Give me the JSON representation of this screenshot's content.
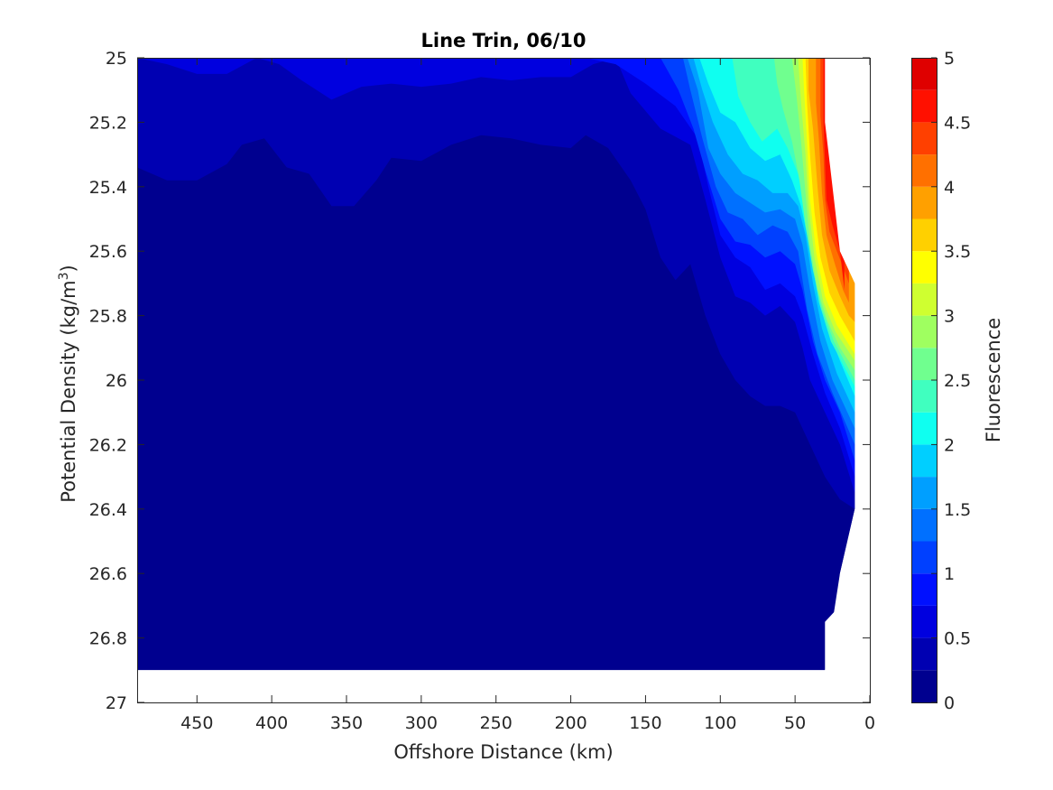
{
  "chart_data": {
    "type": "contour",
    "title": "Line Trin, 06/10",
    "xlabel": "Offshore Distance (km)",
    "ylabel_main": "Potential Density (kg/m",
    "ylabel_sup": "3",
    "ylabel_tail": ")",
    "colorbar_label": "Fluorescence",
    "xlim": [
      490,
      0
    ],
    "x_direction": "reversed",
    "ylim": [
      25,
      27
    ],
    "y_direction": "reversed",
    "clim": [
      0,
      5
    ],
    "grid": false,
    "x_ticks": [
      450,
      400,
      350,
      300,
      250,
      200,
      150,
      100,
      50,
      0
    ],
    "y_ticks": [
      25,
      25.2,
      25.4,
      25.6,
      25.8,
      26,
      26.2,
      26.4,
      26.6,
      26.8,
      27
    ],
    "y_tick_labels": [
      "25",
      "25.2",
      "25.4",
      "25.6",
      "25.8",
      "26",
      "26.2",
      "26.4",
      "26.6",
      "26.8",
      "27"
    ],
    "colorbar_ticks": [
      0,
      0.5,
      1,
      1.5,
      2,
      2.5,
      3,
      3.5,
      4,
      4.5,
      5
    ],
    "colorbar_tick_labels": [
      "0",
      "0.5",
      "1",
      "1.5",
      "2",
      "2.5",
      "3",
      "3.5",
      "4",
      "4.5",
      "5"
    ],
    "levels": [
      0,
      0.25,
      0.5,
      0.75,
      1,
      1.25,
      1.5,
      1.75,
      2,
      2.25,
      2.5,
      2.75,
      3,
      3.25,
      3.5,
      3.75,
      4,
      4.25,
      4.5,
      4.75,
      5
    ],
    "level_colors": [
      "#00008f",
      "#0000b2",
      "#0000df",
      "#0010ff",
      "#0040ff",
      "#0070ff",
      "#009fff",
      "#00cfff",
      "#0ffff0",
      "#40ffbf",
      "#70ff8f",
      "#9fff60",
      "#cfff30",
      "#ffff00",
      "#ffd000",
      "#ffa000",
      "#ff7000",
      "#ff4000",
      "#ff1000",
      "#df0000",
      "#af0000"
    ],
    "data_extent": {
      "comment_free": true,
      "x": [
        490,
        460,
        440,
        420,
        400,
        380,
        360,
        340,
        320,
        300,
        280,
        260,
        240,
        220,
        200,
        180,
        160,
        140,
        130,
        120,
        110,
        100,
        90,
        80,
        70,
        60,
        50,
        40,
        30,
        20,
        10
      ],
      "deep_boundary_y": [
        26.9,
        26.9,
        26.9,
        26.9,
        26.9,
        26.9,
        26.9,
        26.9,
        26.9,
        26.9,
        26.9,
        26.9,
        26.9,
        26.9,
        26.9,
        26.9,
        26.9,
        26.9,
        26.9,
        26.9,
        26.9,
        26.9,
        26.9,
        26.9,
        26.9,
        26.9,
        26.9,
        26.9,
        26.9,
        26.6,
        26.4
      ],
      "shallow_boundary_y": [
        25,
        25,
        25,
        25,
        25,
        25,
        25,
        25,
        25,
        25,
        25,
        25,
        25,
        25,
        25,
        25,
        25,
        25,
        25,
        25,
        25,
        25,
        25,
        25,
        25,
        25,
        25,
        25,
        25.2,
        25.6,
        25.7
      ]
    },
    "contour_bands": [
      {
        "level": 0.25,
        "boundary": [
          [
            490,
            25.34
          ],
          [
            470,
            25.38
          ],
          [
            450,
            25.38
          ],
          [
            430,
            25.33
          ],
          [
            420,
            25.27
          ],
          [
            405,
            25.25
          ],
          [
            390,
            25.34
          ],
          [
            375,
            25.36
          ],
          [
            360,
            25.46
          ],
          [
            345,
            25.46
          ],
          [
            330,
            25.38
          ],
          [
            320,
            25.31
          ],
          [
            300,
            25.32
          ],
          [
            280,
            25.27
          ],
          [
            260,
            25.24
          ],
          [
            240,
            25.25
          ],
          [
            220,
            25.27
          ],
          [
            200,
            25.28
          ],
          [
            190,
            25.24
          ],
          [
            175,
            25.28
          ],
          [
            160,
            25.38
          ],
          [
            150,
            25.47
          ],
          [
            140,
            25.62
          ],
          [
            130,
            25.69
          ],
          [
            120,
            25.64
          ],
          [
            110,
            25.8
          ],
          [
            100,
            25.92
          ],
          [
            90,
            26.0
          ],
          [
            80,
            26.05
          ],
          [
            70,
            26.08
          ],
          [
            60,
            26.08
          ],
          [
            50,
            26.1
          ],
          [
            40,
            26.2
          ],
          [
            30,
            26.3
          ],
          [
            20,
            26.37
          ],
          [
            10,
            26.4
          ]
        ]
      },
      {
        "level": 0.5,
        "boundary": [
          [
            490,
            25.0
          ],
          [
            470,
            25.02
          ],
          [
            450,
            25.05
          ],
          [
            430,
            25.05
          ],
          [
            410,
            25.0
          ],
          [
            395,
            25.02
          ],
          [
            380,
            25.07
          ],
          [
            360,
            25.13
          ],
          [
            340,
            25.09
          ],
          [
            320,
            25.08
          ],
          [
            300,
            25.09
          ],
          [
            280,
            25.08
          ],
          [
            260,
            25.06
          ],
          [
            240,
            25.07
          ],
          [
            220,
            25.06
          ],
          [
            200,
            25.06
          ],
          [
            185,
            25.02
          ],
          [
            170,
            25.0
          ],
          [
            160,
            25.11
          ],
          [
            140,
            25.22
          ],
          [
            120,
            25.27
          ],
          [
            110,
            25.44
          ],
          [
            100,
            25.62
          ],
          [
            90,
            25.74
          ],
          [
            80,
            25.76
          ],
          [
            70,
            25.8
          ],
          [
            60,
            25.77
          ],
          [
            50,
            25.82
          ],
          [
            45,
            25.9
          ],
          [
            40,
            26.0
          ],
          [
            30,
            26.1
          ],
          [
            20,
            26.2
          ],
          [
            10,
            26.35
          ]
        ]
      },
      {
        "level": 0.75,
        "boundary": [
          [
            190,
            25.0
          ],
          [
            170,
            25.02
          ],
          [
            150,
            25.08
          ],
          [
            130,
            25.15
          ],
          [
            115,
            25.25
          ],
          [
            108,
            25.4
          ],
          [
            100,
            25.55
          ],
          [
            90,
            25.62
          ],
          [
            80,
            25.65
          ],
          [
            70,
            25.72
          ],
          [
            60,
            25.7
          ],
          [
            50,
            25.74
          ],
          [
            45,
            25.8
          ],
          [
            38,
            25.92
          ],
          [
            30,
            26.04
          ],
          [
            20,
            26.15
          ],
          [
            10,
            26.3
          ]
        ]
      },
      {
        "level": 1,
        "boundary": [
          [
            160,
            25.0
          ],
          [
            140,
            25.0
          ],
          [
            128,
            25.1
          ],
          [
            118,
            25.22
          ],
          [
            110,
            25.35
          ],
          [
            100,
            25.5
          ],
          [
            90,
            25.57
          ],
          [
            80,
            25.58
          ],
          [
            70,
            25.62
          ],
          [
            60,
            25.6
          ],
          [
            50,
            25.64
          ],
          [
            45,
            25.72
          ],
          [
            38,
            25.88
          ],
          [
            30,
            26.0
          ],
          [
            20,
            26.1
          ],
          [
            10,
            26.25
          ]
        ]
      },
      {
        "level": 1.25,
        "boundary": [
          [
            125,
            25.0
          ],
          [
            120,
            25.1
          ],
          [
            112,
            25.25
          ],
          [
            103,
            25.4
          ],
          [
            95,
            25.48
          ],
          [
            85,
            25.5
          ],
          [
            75,
            25.55
          ],
          [
            65,
            25.52
          ],
          [
            55,
            25.54
          ],
          [
            48,
            25.6
          ],
          [
            42,
            25.78
          ],
          [
            35,
            25.92
          ],
          [
            25,
            26.04
          ],
          [
            10,
            26.2
          ]
        ]
      },
      {
        "level": 1.5,
        "boundary": [
          [
            122,
            25.0
          ],
          [
            115,
            25.1
          ],
          [
            108,
            25.28
          ],
          [
            100,
            25.36
          ],
          [
            90,
            25.42
          ],
          [
            80,
            25.45
          ],
          [
            70,
            25.48
          ],
          [
            60,
            25.47
          ],
          [
            50,
            25.5
          ],
          [
            45,
            25.58
          ],
          [
            40,
            25.72
          ],
          [
            33,
            25.88
          ],
          [
            25,
            26.0
          ],
          [
            10,
            26.15
          ]
        ]
      },
      {
        "level": 1.75,
        "boundary": [
          [
            118,
            25.0
          ],
          [
            112,
            25.1
          ],
          [
            105,
            25.2
          ],
          [
            95,
            25.3
          ],
          [
            85,
            25.36
          ],
          [
            75,
            25.38
          ],
          [
            65,
            25.42
          ],
          [
            55,
            25.42
          ],
          [
            48,
            25.46
          ],
          [
            43,
            25.55
          ],
          [
            38,
            25.7
          ],
          [
            32,
            25.84
          ],
          [
            22,
            25.98
          ],
          [
            10,
            26.1
          ]
        ]
      },
      {
        "level": 2,
        "boundary": [
          [
            114,
            25.0
          ],
          [
            108,
            25.08
          ],
          [
            100,
            25.17
          ],
          [
            90,
            25.2
          ],
          [
            80,
            25.28
          ],
          [
            70,
            25.32
          ],
          [
            60,
            25.3
          ],
          [
            52,
            25.38
          ],
          [
            46,
            25.46
          ],
          [
            42,
            25.55
          ],
          [
            37,
            25.68
          ],
          [
            30,
            25.82
          ],
          [
            20,
            25.94
          ],
          [
            10,
            26.05
          ]
        ]
      },
      {
        "level": 2.25,
        "boundary": [
          [
            92,
            25.0
          ],
          [
            88,
            25.12
          ],
          [
            80,
            25.2
          ],
          [
            72,
            25.26
          ],
          [
            62,
            25.22
          ],
          [
            55,
            25.28
          ],
          [
            48,
            25.36
          ],
          [
            44,
            25.46
          ],
          [
            40,
            25.6
          ],
          [
            34,
            25.76
          ],
          [
            26,
            25.88
          ],
          [
            10,
            26.02
          ]
        ]
      },
      {
        "level": 2.5,
        "boundary": [
          [
            64,
            25.0
          ],
          [
            62,
            25.08
          ],
          [
            58,
            25.16
          ],
          [
            52,
            25.26
          ],
          [
            47,
            25.38
          ],
          [
            43,
            25.52
          ],
          [
            38,
            25.66
          ],
          [
            32,
            25.78
          ],
          [
            24,
            25.88
          ],
          [
            10,
            26.0
          ]
        ]
      },
      {
        "level": 2.75,
        "boundary": [
          [
            52,
            25.0
          ],
          [
            49,
            25.12
          ],
          [
            46,
            25.26
          ],
          [
            43,
            25.42
          ],
          [
            40,
            25.58
          ],
          [
            35,
            25.72
          ],
          [
            28,
            25.82
          ],
          [
            20,
            25.9
          ],
          [
            10,
            25.97
          ]
        ]
      },
      {
        "level": 3,
        "boundary": [
          [
            48,
            25.0
          ],
          [
            46,
            25.14
          ],
          [
            43,
            25.3
          ],
          [
            41,
            25.46
          ],
          [
            37,
            25.62
          ],
          [
            31,
            25.76
          ],
          [
            23,
            25.85
          ],
          [
            10,
            25.94
          ]
        ]
      },
      {
        "level": 3.25,
        "boundary": [
          [
            45,
            25.0
          ],
          [
            44,
            25.1
          ],
          [
            42,
            25.26
          ],
          [
            40,
            25.44
          ],
          [
            36,
            25.6
          ],
          [
            30,
            25.74
          ],
          [
            22,
            25.83
          ],
          [
            10,
            25.92
          ]
        ]
      },
      {
        "level": 3.5,
        "boundary": [
          [
            43,
            25.0
          ],
          [
            42,
            25.14
          ],
          [
            40,
            25.3
          ],
          [
            37,
            25.48
          ],
          [
            33,
            25.62
          ],
          [
            27,
            25.73
          ],
          [
            20,
            25.8
          ],
          [
            10,
            25.88
          ]
        ]
      },
      {
        "level": 3.75,
        "boundary": [
          [
            41,
            25.1
          ],
          [
            38,
            25.22
          ],
          [
            35,
            25.4
          ],
          [
            32,
            25.55
          ],
          [
            27,
            25.66
          ],
          [
            20,
            25.74
          ],
          [
            14,
            25.8
          ],
          [
            10,
            25.82
          ]
        ]
      },
      {
        "level": 4,
        "boundary": [
          [
            36,
            25.14
          ],
          [
            34,
            25.26
          ],
          [
            32,
            25.42
          ],
          [
            29,
            25.55
          ],
          [
            24,
            25.63
          ],
          [
            18,
            25.72
          ],
          [
            14,
            25.76
          ]
        ]
      },
      {
        "level": 4.25,
        "boundary": [
          [
            33,
            25.18
          ],
          [
            31,
            25.3
          ],
          [
            30,
            25.44
          ],
          [
            27,
            25.54
          ],
          [
            22,
            25.6
          ],
          [
            17,
            25.66
          ],
          [
            14,
            25.7
          ]
        ]
      },
      {
        "level": 4.5,
        "boundary": [
          [
            31,
            25.2
          ],
          [
            30,
            25.32
          ],
          [
            29,
            25.44
          ],
          [
            25,
            25.52
          ],
          [
            20,
            25.6
          ],
          [
            17,
            25.72
          ]
        ]
      }
    ]
  }
}
